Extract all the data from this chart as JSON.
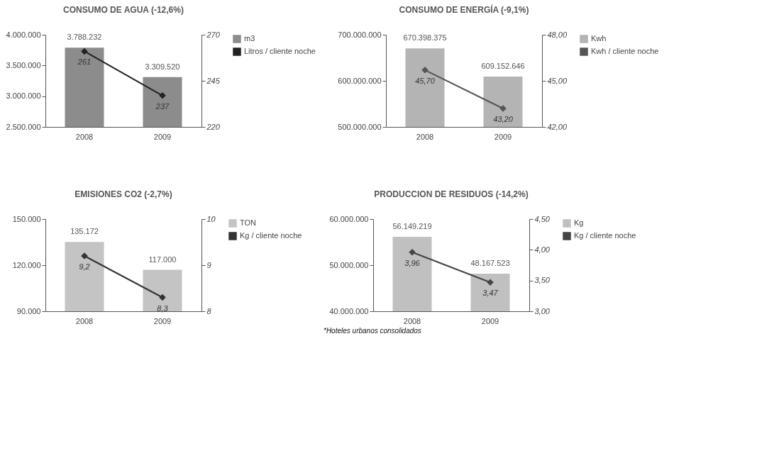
{
  "chart_data": [
    {
      "type": "bar",
      "title": "CONSUMO DE AGUA (-12,6%)",
      "categories": [
        "2008",
        "2009"
      ],
      "series": [
        {
          "name": "m3",
          "color": "#8c8c8c",
          "values": [
            3788232,
            3309520
          ],
          "value_labels": [
            "3.788.232",
            "3.309.520"
          ]
        },
        {
          "name": "Litros / cliente noche",
          "type": "line",
          "axis": "y2",
          "color": "#222222",
          "values": [
            261,
            237
          ],
          "value_labels": [
            "261",
            "237"
          ]
        }
      ],
      "ylim": [
        2500000,
        4000000
      ],
      "yticks": [
        {
          "value": 2500000,
          "label": "2.500.000"
        },
        {
          "value": 3000000,
          "label": "3.000.000"
        },
        {
          "value": 3500000,
          "label": "3.500.000"
        },
        {
          "value": 4000000,
          "label": "4.000.000"
        }
      ],
      "y2lim": [
        220,
        270
      ],
      "y2ticks": [
        220,
        245,
        270
      ],
      "legend": "right",
      "marker": "diamond",
      "grid": false
    },
    {
      "type": "bar",
      "title": "CONSUMO DE ENERGÍA (-9,1%)",
      "categories": [
        "2008",
        "2009"
      ],
      "series": [
        {
          "name": "Kwh",
          "color": "#b4b4b4",
          "values": [
            670398375,
            609152646
          ],
          "value_labels": [
            "670.398.375",
            "609.152.646"
          ]
        },
        {
          "name": "Kwh / cliente noche",
          "type": "line",
          "axis": "y2",
          "color": "#555555",
          "values": [
            45.7,
            43.2
          ],
          "value_labels": [
            "45,70",
            "43,20"
          ]
        }
      ],
      "ylim": [
        500000000,
        700000000
      ],
      "yticks": [
        {
          "value": 500000000,
          "label": "500.000.000"
        },
        {
          "value": 600000000,
          "label": "600.000.000"
        },
        {
          "value": 700000000,
          "label": "700.000.000"
        }
      ],
      "y2lim": [
        42,
        48
      ],
      "y2ticks": [
        {
          "value": 42,
          "label": "42,00"
        },
        {
          "value": 45,
          "label": "45,00"
        },
        {
          "value": 48,
          "label": "48,00"
        }
      ],
      "legend": "right",
      "marker": "diamond",
      "grid": false
    },
    {
      "type": "bar",
      "title": "EMISIONES CO2 (-2,7%)",
      "categories": [
        "2008",
        "2009"
      ],
      "series": [
        {
          "name": "TON",
          "color": "#c4c4c4",
          "values": [
            135172,
            117000
          ],
          "value_labels": [
            "135.172",
            "117.000"
          ]
        },
        {
          "name": "Kg / cliente noche",
          "type": "line",
          "axis": "y2",
          "color": "#333333",
          "values": [
            9.2,
            8.3
          ],
          "value_labels": [
            "9,2",
            "8,3"
          ]
        }
      ],
      "ylim": [
        90000,
        150000
      ],
      "yticks": [
        {
          "value": 90000,
          "label": "90.000"
        },
        {
          "value": 120000,
          "label": "120.000"
        },
        {
          "value": 150000,
          "label": "150.000"
        }
      ],
      "y2lim": [
        8,
        10
      ],
      "y2ticks": [
        8,
        9,
        10
      ],
      "legend": "right",
      "marker": "diamond",
      "grid": false
    },
    {
      "type": "bar",
      "title": "PRODUCCION DE RESIDUOS (-14,2%)",
      "categories": [
        "2008",
        "2009"
      ],
      "series": [
        {
          "name": "Kg",
          "color": "#c0c0c0",
          "values": [
            56149219,
            48167523
          ],
          "value_labels": [
            "56.149.219",
            "48.167.523"
          ]
        },
        {
          "name": "Kg / cliente noche",
          "type": "line",
          "axis": "y2",
          "color": "#444444",
          "values": [
            3.96,
            3.47
          ],
          "value_labels": [
            "3,96",
            "3,47"
          ]
        }
      ],
      "ylim": [
        40000000,
        60000000
      ],
      "yticks": [
        {
          "value": 40000000,
          "label": "40.000.000"
        },
        {
          "value": 50000000,
          "label": "50.000.000"
        },
        {
          "value": 60000000,
          "label": "60.000.000"
        }
      ],
      "y2lim": [
        3,
        4.5
      ],
      "y2ticks": [
        {
          "value": 3,
          "label": "3,00"
        },
        {
          "value": 3.5,
          "label": "3,50"
        },
        {
          "value": 4,
          "label": "4,00"
        },
        {
          "value": 4.5,
          "label": "4,50"
        }
      ],
      "legend": "right",
      "marker": "diamond",
      "grid": false,
      "annotations": [
        "*Hoteles urbanos consolidados"
      ]
    }
  ]
}
